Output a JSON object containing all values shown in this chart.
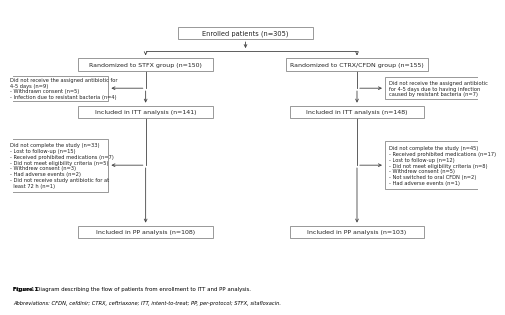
{
  "title": "Figure 1 Diagram describing the flow of patients from enrollment to ITT and PP analysis.",
  "abbreviations": "Abbreviations: CFDN, cefdinir; CTRX, ceftriaxone; ITT, intent-to-treat; PP, per-protocol; STFX, sitafloxacin.",
  "bg_color": "#ffffff",
  "box_color": "#ffffff",
  "box_edge": "#888888",
  "text_color": "#222222",
  "enrolled_text": "Enrolled patients (n=305)",
  "stfx_text": "Randomized to STFX group (n=150)",
  "ctrx_text": "Randomized to CTRX/CFDN group (n=155)",
  "stfx_excl_text": "Did not receive the assigned antibiotic for\n4-5 days (n=9)\n- Withdrawn consent (n=5)\n- Infection due to resistant bacteria (n=4)",
  "ctrx_excl_text": "Did not receive the assigned antibiotic\nfor 4-5 days due to having infection\ncaused by resistant bacteria (n=7)",
  "itt_stfx_text": "Included in ITT analysis (n=141)",
  "itt_ctrx_text": "Included in ITT analysis (n=148)",
  "stfx_excl2_text": "Did not complete the study (n=33)\n- Lost to follow-up (n=15)\n- Received prohibited medications (n=7)\n- Did not meet eligibility criteria (n=5)\n- Withdrew consent (n=3)\n- Had adverse events (n=2)\n- Did not receive study antibiotic for at\n  least 72 h (n=1)",
  "ctrx_excl2_text": "Did not complete the study (n=45)\n- Received prohibited medications (n=17)\n- Lost to follow-up (n=12)\n- Did not meet eligibility criteria (n=8)\n- Withdrew consent (n=5)\n- Not switched to oral CFDN (n=2)\n- Had adverse events (n=1)",
  "pp_stfx_text": "Included in PP analysis (n=108)",
  "pp_ctrx_text": "Included in PP analysis (n=103)"
}
